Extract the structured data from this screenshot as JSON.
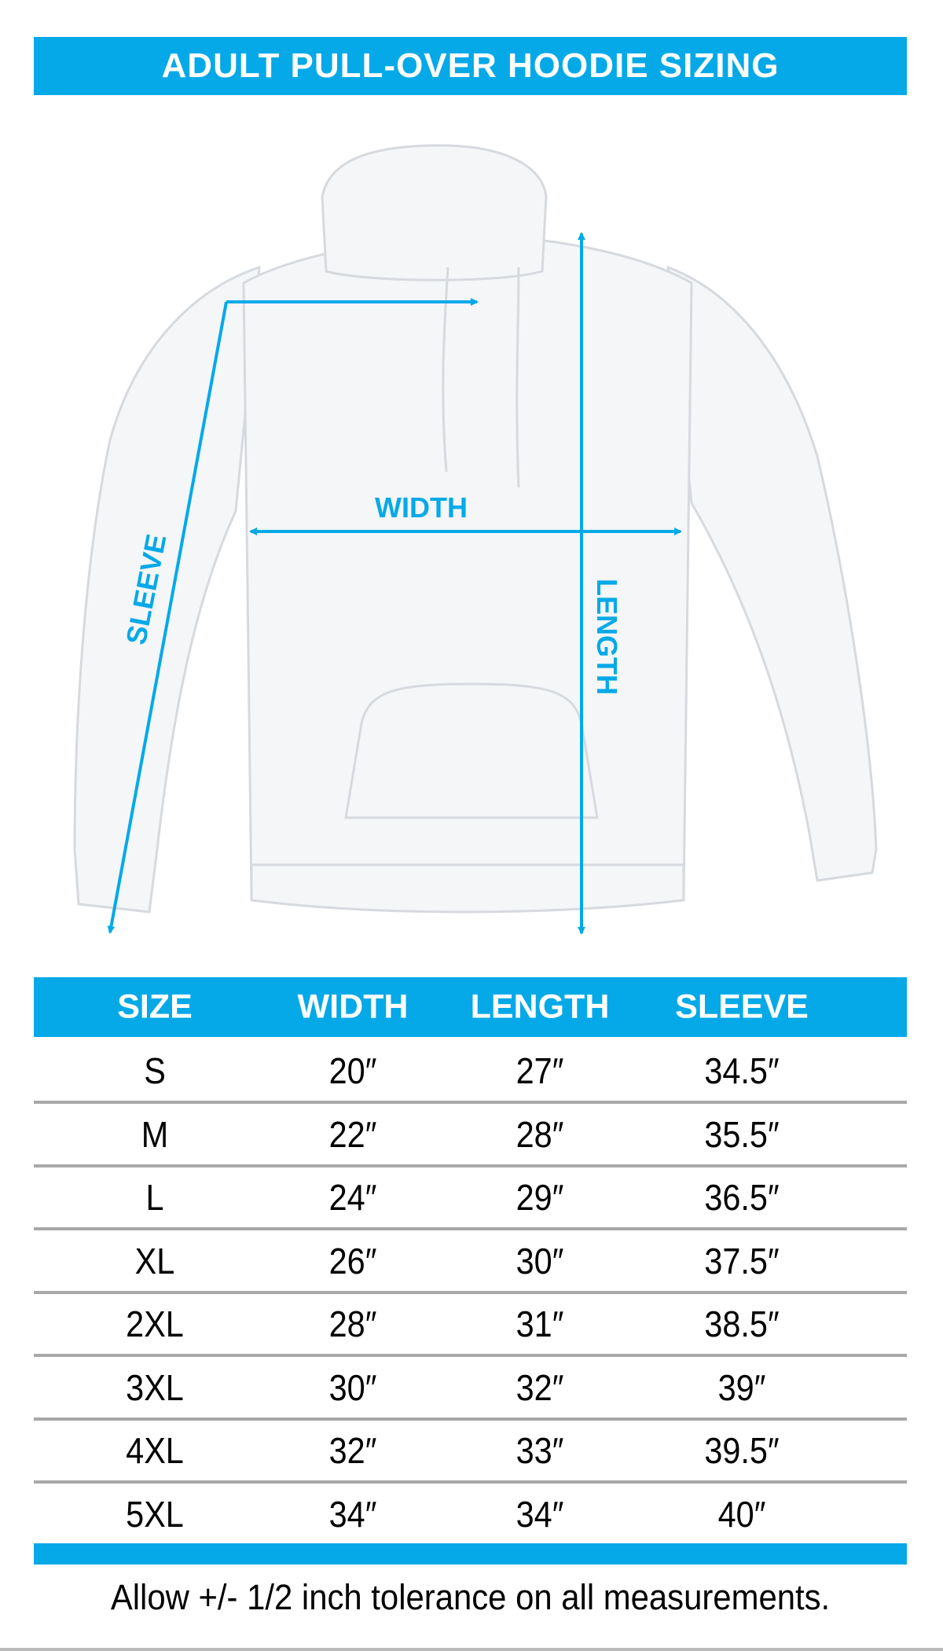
{
  "title": "ADULT PULL-OVER HOODIE SIZING",
  "diagram": {
    "labels": {
      "width": "WIDTH",
      "length": "LENGTH",
      "sleeve": "SLEEVE"
    },
    "arrow_color": "#05a9e8"
  },
  "table": {
    "header_color": "#05a9e8",
    "columns": [
      "SIZE",
      "WIDTH",
      "LENGTH",
      "SLEEVE"
    ],
    "rows": [
      [
        "S",
        "20″",
        "27″",
        "34.5″"
      ],
      [
        "M",
        "22″",
        "28″",
        "35.5″"
      ],
      [
        "L",
        "24″",
        "29″",
        "36.5″"
      ],
      [
        "XL",
        "26″",
        "30″",
        "37.5″"
      ],
      [
        "2XL",
        "28″",
        "31″",
        "38.5″"
      ],
      [
        "3XL",
        "30″",
        "32″",
        "39″"
      ],
      [
        "4XL",
        "32″",
        "33″",
        "39.5″"
      ],
      [
        "5XL",
        "34″",
        "34″",
        "40″"
      ]
    ]
  },
  "footer": "Allow +/- 1/2 inch tolerance on all measurements."
}
